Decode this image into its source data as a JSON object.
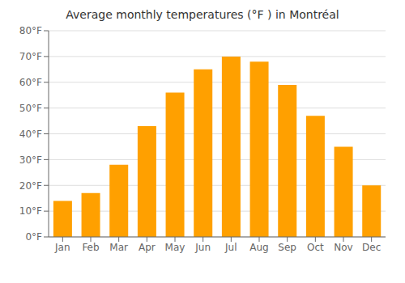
{
  "chart_data": {
    "type": "bar",
    "title": "Average monthly temperatures (°F ) in Montréal",
    "categories": [
      "Jan",
      "Feb",
      "Mar",
      "Apr",
      "May",
      "Jun",
      "Jul",
      "Aug",
      "Sep",
      "Oct",
      "Nov",
      "Dec"
    ],
    "values": [
      14,
      17,
      28,
      43,
      56,
      65,
      70,
      68,
      59,
      47,
      35,
      20
    ],
    "color": "#FFA000",
    "ylim": [
      0,
      80
    ],
    "yticks": [
      {
        "value": 0,
        "label": "0°F"
      },
      {
        "value": 10,
        "label": "10°F"
      },
      {
        "value": 20,
        "label": "20°F"
      },
      {
        "value": 30,
        "label": "30°F"
      },
      {
        "value": 40,
        "label": "40°F"
      },
      {
        "value": 50,
        "label": "50°F"
      },
      {
        "value": 60,
        "label": "60°F"
      },
      {
        "value": 70,
        "label": "70°F"
      },
      {
        "value": 80,
        "label": "80°F"
      }
    ],
    "grid": true
  }
}
